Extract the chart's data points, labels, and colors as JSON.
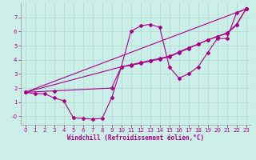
{
  "background_color": "#cceee8",
  "grid_color": "#aaddcc",
  "line_color": "#aa0088",
  "xlabel": "Windchill (Refroidissement éolien,°C)",
  "xlim": [
    -0.5,
    23.5
  ],
  "ylim": [
    -0.6,
    8.0
  ],
  "xticks": [
    0,
    1,
    2,
    3,
    4,
    5,
    6,
    7,
    8,
    9,
    10,
    11,
    12,
    13,
    14,
    15,
    16,
    17,
    18,
    19,
    20,
    21,
    22,
    23
  ],
  "yticks": [
    0,
    1,
    2,
    3,
    4,
    5,
    6,
    7
  ],
  "ytick_labels": [
    "-0",
    "1",
    "2",
    "3",
    "4",
    "5",
    "6",
    "7"
  ],
  "series": [
    {
      "x": [
        0,
        1,
        2,
        3,
        4,
        5,
        6,
        7,
        8,
        9,
        10,
        11,
        12,
        13,
        14,
        15,
        16,
        17,
        18,
        19,
        20,
        21,
        22,
        23
      ],
      "y": [
        1.7,
        1.6,
        1.6,
        1.3,
        1.1,
        -0.1,
        -0.15,
        -0.2,
        -0.15,
        1.3,
        3.5,
        6.0,
        6.4,
        6.5,
        6.3,
        3.5,
        2.7,
        3.0,
        3.5,
        4.5,
        5.5,
        5.5,
        7.3,
        7.6
      ]
    },
    {
      "x": [
        0,
        23
      ],
      "y": [
        1.7,
        7.6
      ]
    },
    {
      "x": [
        0,
        10,
        11,
        12,
        13,
        14,
        15,
        16,
        17,
        18,
        19,
        20,
        21,
        22,
        23
      ],
      "y": [
        1.7,
        3.5,
        3.65,
        3.8,
        3.95,
        4.1,
        4.25,
        4.55,
        4.85,
        5.1,
        5.4,
        5.65,
        5.9,
        6.5,
        7.6
      ]
    },
    {
      "x": [
        0,
        3,
        9,
        10,
        11,
        12,
        13,
        14,
        15,
        16,
        17,
        18,
        19,
        20,
        21,
        22,
        23
      ],
      "y": [
        1.7,
        1.8,
        2.0,
        3.5,
        3.6,
        3.75,
        3.9,
        4.05,
        4.2,
        4.5,
        4.8,
        5.1,
        5.4,
        5.65,
        5.85,
        6.45,
        7.6
      ]
    }
  ]
}
